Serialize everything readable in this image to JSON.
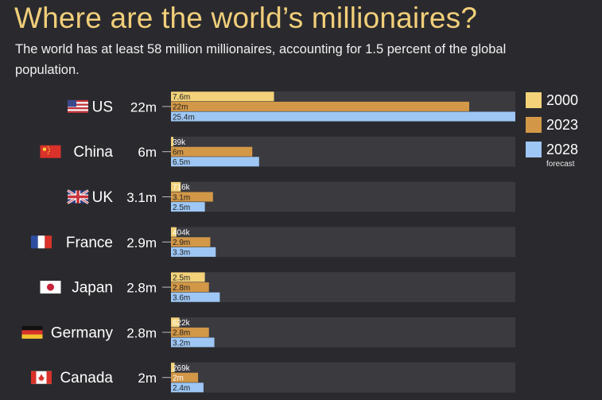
{
  "title": "Where are the world’s millionaires?",
  "subtitle": "The world has at least 58 million millionaires, accounting for 1.5 percent of the global population.",
  "legend": [
    {
      "label": "2000",
      "color": "#f3d27a"
    },
    {
      "label": "2023",
      "color": "#d39847"
    },
    {
      "label": "2028",
      "color": "#9ec7f5",
      "note": "forecast"
    }
  ],
  "chart_data": {
    "type": "bar",
    "orientation": "horizontal",
    "unit": "millions of millionaires",
    "categories": [
      "US",
      "China",
      "UK",
      "France",
      "Japan",
      "Germany",
      "Canada"
    ],
    "category_totals": [
      "22m",
      "6m",
      "3.1m",
      "2.9m",
      "2.8m",
      "2.8m",
      "2m"
    ],
    "flags": [
      "us-flag-icon",
      "china-flag-icon",
      "uk-flag-icon",
      "france-flag-icon",
      "japan-flag-icon",
      "germany-flag-icon",
      "canada-flag-icon"
    ],
    "series": [
      {
        "name": "2000",
        "color": "#f3d27a",
        "values": [
          7.6,
          0.039,
          0.716,
          0.404,
          2.5,
          0.622,
          0.269
        ],
        "labels": [
          "7.6m",
          "39k",
          "716k",
          "404k",
          "2.5m",
          "622k",
          "269k"
        ]
      },
      {
        "name": "2023",
        "color": "#d39847",
        "values": [
          22,
          6,
          3.1,
          2.9,
          2.8,
          2.8,
          2
        ],
        "labels": [
          "22m",
          "6m",
          "3.1m",
          "2.9m",
          "2.8m",
          "2.8m",
          "2m"
        ]
      },
      {
        "name": "2028",
        "color": "#9ec7f5",
        "values": [
          25.4,
          6.5,
          2.5,
          3.3,
          3.6,
          3.2,
          2.4
        ],
        "labels": [
          "25.4m",
          "6.5m",
          "2.5m",
          "3.3m",
          "3.6m",
          "3.2m",
          "2.4m"
        ]
      }
    ],
    "xlim": [
      0,
      25.4
    ],
    "grid": false,
    "legend_position": "right"
  }
}
